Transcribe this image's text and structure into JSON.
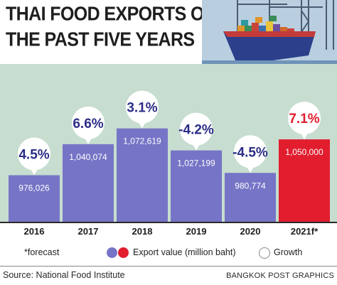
{
  "title_line1": "THAI FOOD EXPORTS OVER",
  "title_line2": "THE PAST FIVE YEARS",
  "colors": {
    "bar": "#7674c6",
    "bar_highlight": "#e11d2e",
    "growth_text": "#2b2d86",
    "growth_text_highlight": "#e11d2e",
    "plot_background": "#c6ddd0"
  },
  "chart_data": {
    "type": "bar",
    "categories": [
      "2016",
      "2017",
      "2018",
      "2019",
      "2020",
      "2021f*"
    ],
    "values": [
      976026,
      1040074,
      1072619,
      1027199,
      980774,
      1050000
    ],
    "value_labels": [
      "976,026",
      "1,040,074",
      "1,072,619",
      "1,027,199",
      "980,774",
      "1,050,000"
    ],
    "growth_labels": [
      "4.5%",
      "6.6%",
      "3.1%",
      "-4.2%",
      "-4.5%",
      "7.1%"
    ],
    "growth": [
      4.5,
      6.6,
      3.1,
      -4.2,
      -4.5,
      7.1
    ],
    "highlight_index": 5,
    "value_series_name": "Export value (million baht)",
    "growth_series_name": "Growth",
    "ylim": [
      880000,
      1100000
    ]
  },
  "legend": {
    "forecast_note": "*forecast",
    "value_label": "Export value (million baht)",
    "growth_label": "Growth"
  },
  "source": "Source: National Food Institute",
  "credit": "BANGKOK POST GRAPHICS"
}
